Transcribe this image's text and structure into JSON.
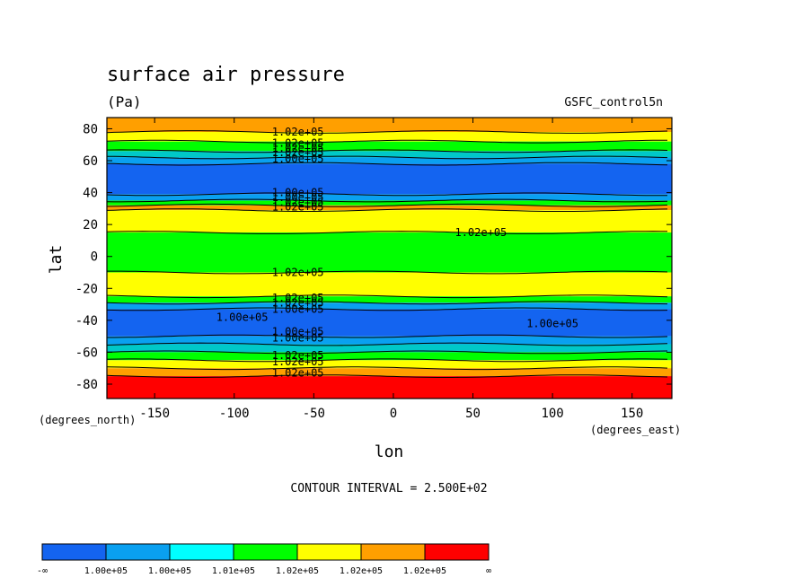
{
  "chart_data": {
    "type": "contour",
    "title": "surface air pressure",
    "units": "(Pa)",
    "dataset": "GSFC_control5n",
    "xlabel": "lon",
    "ylabel": "lat",
    "x_units": "(degrees_east)",
    "y_units": "(degrees_north)",
    "xlim": [
      -180,
      175
    ],
    "ylim": [
      -89,
      87
    ],
    "x_ticks": [
      -150,
      -100,
      -50,
      0,
      50,
      100,
      150
    ],
    "y_ticks": [
      -80,
      -60,
      -40,
      -20,
      0,
      20,
      40,
      60,
      80
    ],
    "contour_interval_text": "CONTOUR INTERVAL = 2.500E+02",
    "bands": [
      {
        "lat_from": 87,
        "lat_to": 78,
        "color": "#ff9f00"
      },
      {
        "lat_from": 78,
        "lat_to": 72,
        "color": "#ffff00"
      },
      {
        "lat_from": 72,
        "lat_to": 66,
        "color": "#00ff00"
      },
      {
        "lat_from": 66,
        "lat_to": 62,
        "color": "#00c8c8"
      },
      {
        "lat_from": 62,
        "lat_to": 58,
        "color": "#0aa0f0"
      },
      {
        "lat_from": 58,
        "lat_to": 39,
        "color": "#1464f0"
      },
      {
        "lat_from": 39,
        "lat_to": 35,
        "color": "#0aa0f0"
      },
      {
        "lat_from": 35,
        "lat_to": 32,
        "color": "#00ff00"
      },
      {
        "lat_from": 32,
        "lat_to": 29,
        "color": "#ff9f00"
      },
      {
        "lat_from": 29,
        "lat_to": 15,
        "color": "#ffff00"
      },
      {
        "lat_from": 15,
        "lat_to": -10,
        "color": "#00ff00"
      },
      {
        "lat_from": -10,
        "lat_to": -25,
        "color": "#ffff00"
      },
      {
        "lat_from": -25,
        "lat_to": -29,
        "color": "#00ff00"
      },
      {
        "lat_from": -29,
        "lat_to": -33,
        "color": "#0aa0f0"
      },
      {
        "lat_from": -33,
        "lat_to": -50,
        "color": "#1464f0"
      },
      {
        "lat_from": -50,
        "lat_to": -55,
        "color": "#0aa0f0"
      },
      {
        "lat_from": -55,
        "lat_to": -60,
        "color": "#00c8c8"
      },
      {
        "lat_from": -60,
        "lat_to": -65,
        "color": "#00ff00"
      },
      {
        "lat_from": -65,
        "lat_to": -70,
        "color": "#ffff00"
      },
      {
        "lat_from": -70,
        "lat_to": -75,
        "color": "#ff9f00"
      },
      {
        "lat_from": -75,
        "lat_to": -89,
        "color": "#ff0000"
      }
    ],
    "contour_labels": [
      {
        "text": "1.02e+05",
        "lon": -60,
        "lat": 78
      },
      {
        "text": "1.02e+05",
        "lon": -60,
        "lat": 71
      },
      {
        "text": "1.02e+05",
        "lon": -60,
        "lat": 68
      },
      {
        "text": "1.02e+05",
        "lon": -60,
        "lat": 65
      },
      {
        "text": "1.00e+05",
        "lon": -60,
        "lat": 61
      },
      {
        "text": "1.00e+05",
        "lon": -60,
        "lat": 40
      },
      {
        "text": "1.00e+05",
        "lon": -60,
        "lat": 37
      },
      {
        "text": "1.02e+05",
        "lon": -60,
        "lat": 34
      },
      {
        "text": "1.02e+05",
        "lon": -60,
        "lat": 31
      },
      {
        "text": "1.02e+05",
        "lon": 55,
        "lat": 15
      },
      {
        "text": "1.02e+05",
        "lon": -60,
        "lat": -10
      },
      {
        "text": "1.02e+05",
        "lon": -60,
        "lat": -26
      },
      {
        "text": "1.02e+05",
        "lon": -60,
        "lat": -29
      },
      {
        "text": "1.00e+05",
        "lon": -60,
        "lat": -33
      },
      {
        "text": "1.00e+05",
        "lon": -95,
        "lat": -38
      },
      {
        "text": "1.00e+05",
        "lon": 100,
        "lat": -42
      },
      {
        "text": "1.00e+05",
        "lon": -60,
        "lat": -47
      },
      {
        "text": "1.00e+05",
        "lon": -60,
        "lat": -51
      },
      {
        "text": "1.02e+05",
        "lon": -60,
        "lat": -62
      },
      {
        "text": "1.02e+05",
        "lon": -60,
        "lat": -66
      },
      {
        "text": "1.02e+05",
        "lon": -60,
        "lat": -73
      }
    ],
    "colorbar": {
      "colors": [
        "#1464f0",
        "#0aa0f0",
        "#00ffff",
        "#00ff00",
        "#ffff00",
        "#ff9f00",
        "#ff0000"
      ],
      "labels": [
        "-∞",
        "1.00e+05",
        "1.00e+05",
        "1.01e+05",
        "1.02e+05",
        "1.02e+05",
        "1.02e+05",
        "∞"
      ]
    }
  }
}
